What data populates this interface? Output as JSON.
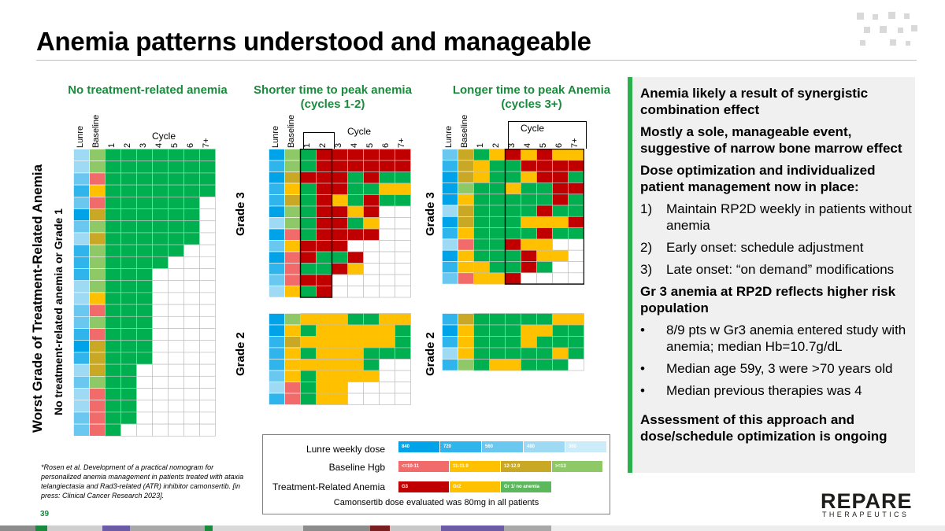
{
  "title": "Anemia patterns understood and manageable",
  "page_number": "39",
  "panels": {
    "no_anemia": {
      "title": "No treatment-related anemia"
    },
    "shorter": {
      "title_line1": "Shorter time to peak anemia",
      "title_line2": "(cycles 1-2)"
    },
    "longer": {
      "title_line1": "Longer time to peak Anemia",
      "title_line2": "(cycles 3+)"
    }
  },
  "column_headers": {
    "lunre": "Lunre",
    "baseline": "Baseline",
    "cycle": "Cycle",
    "cycles": [
      "1",
      "2",
      "3",
      "4",
      "5",
      "6",
      "7+"
    ]
  },
  "grade_labels": {
    "grade3": "Grade 3",
    "grade2": "Grade 2"
  },
  "axis": {
    "outer": "Worst Grade of Treatment-Related Anemia",
    "inner": "No treatment-related anemia or Grade 1"
  },
  "colors": {
    "green": "#00b050",
    "yellow": "#ffc000",
    "red": "#c00000",
    "empty": "#ffffff",
    "lunre": [
      "#00a2e8",
      "#30b4ec",
      "#6ac8f0",
      "#9fdaf5",
      "#cdecfa"
    ],
    "hgb": [
      "#f26b6b",
      "#ffc000",
      "#c9a825",
      "#8fc866"
    ]
  },
  "grids": {
    "no_anemia": {
      "lunre": [
        3,
        3,
        2,
        1,
        2,
        0,
        2,
        3,
        1,
        1,
        1,
        3,
        3,
        2,
        2,
        1,
        0,
        1,
        3,
        2,
        3,
        3,
        2,
        2
      ],
      "baseline": [
        3,
        3,
        0,
        1,
        0,
        2,
        3,
        2,
        3,
        3,
        3,
        3,
        1,
        0,
        3,
        0,
        2,
        2,
        2,
        3,
        0,
        0,
        0,
        0
      ],
      "cycles": [
        7,
        7,
        7,
        7,
        6,
        6,
        6,
        6,
        5,
        4,
        3,
        3,
        3,
        3,
        3,
        3,
        3,
        3,
        2,
        2,
        2,
        2,
        2,
        1
      ]
    },
    "shorter_g3": {
      "lunre": [
        0,
        1,
        0,
        1,
        1,
        0,
        3,
        0,
        2,
        0,
        1,
        2,
        3
      ],
      "baseline": [
        3,
        3,
        2,
        1,
        2,
        3,
        3,
        0,
        1,
        0,
        0,
        0,
        1
      ],
      "rows": [
        "gRRRRRR",
        "gRRRRRR",
        "RRRgRgg",
        "gRRggyy",
        "gRygRgg",
        "gRRyR__",
        "gRRgy__",
        "gRRRR__",
        "RRR____",
        "RggR___",
        "ggRy___",
        "RR_____",
        "gR_____"
      ]
    },
    "shorter_g2": {
      "lunre": [
        0,
        0,
        1,
        1,
        1,
        2,
        3,
        1
      ],
      "baseline": [
        3,
        1,
        2,
        1,
        1,
        1,
        0,
        0
      ],
      "rows": [
        "yyyggyy",
        "gyyyyyg",
        "yyyyyyg",
        "gyyyggg",
        "yyyyg__",
        "gyyyy__",
        "gyy____",
        "gyy____"
      ]
    },
    "longer_g3": {
      "lunre": [
        2,
        1,
        0,
        0,
        0,
        3,
        0,
        1,
        3,
        0,
        1,
        2
      ],
      "baseline": [
        2,
        2,
        2,
        3,
        1,
        2,
        2,
        1,
        0,
        1,
        1,
        0
      ],
      "rows": [
        "gyRyRyy",
        "yggRRRR",
        "yggyRRg",
        "ggyggRR",
        "gggggRg",
        "ggggRgg",
        "gggyyyR",
        "ggggRgg",
        "ggRyy__",
        "gggRyy_",
        "yggRg__",
        "yyR____"
      ]
    },
    "longer_g2": {
      "lunre": [
        1,
        0,
        1,
        3,
        1
      ],
      "baseline": [
        2,
        1,
        1,
        1,
        3
      ],
      "rows": [
        "gggggyy",
        "gggyygg",
        "gggyggg",
        "gggggyg",
        "gyyggg_"
      ]
    }
  },
  "right_panel": {
    "heading1": "Anemia likely a result of synergistic combination effect",
    "heading2": "Mostly a sole, manageable event, suggestive of narrow bone marrow effect",
    "heading3": "Dose optimization and individualized patient management now in place:",
    "numbered": [
      {
        "marker": "1)",
        "text": "Maintain RP2D weekly in patients without anemia"
      },
      {
        "marker": "2)",
        "text": "Early onset: schedule adjustment"
      },
      {
        "marker": "3)",
        "text": "Late onset: “on demand” modifications"
      }
    ],
    "heading4": "Gr 3 anemia at RP2D reflects higher risk population",
    "bullets": [
      {
        "marker": "•",
        "text": "8/9 pts w Gr3 anemia entered study with anemia; median Hb=10.7g/dL"
      },
      {
        "marker": "•",
        "text": "Median age 59y, 3 were >70 years old"
      },
      {
        "marker": "•",
        "text": "Median previous therapies was 4"
      }
    ],
    "heading5": "Assessment of this approach and dose/schedule optimization is ongoing"
  },
  "legend": {
    "row1": {
      "label": "Lunre weekly dose",
      "segments": [
        "840",
        "720",
        "560",
        "480",
        "360"
      ]
    },
    "row2": {
      "label": "Baseline Hgb",
      "segments": [
        "<=10-11",
        "11-11.9",
        "12-12.9",
        ">=13"
      ]
    },
    "row3": {
      "label": "Treatment-Related Anemia",
      "segments": [
        "G3",
        "Gr2",
        "Gr 1/ no anemia"
      ]
    },
    "footer": "Camonsertib dose evaluated was 80mg in all patients"
  },
  "footnote": "*Rosen et al. Development of a practical nomogram for personalized anemia management in patients treated with ataxia telangiectasia and Rad3-related (ATR) inhibitor camonsertib. [in press: Clinical Cancer Research 2023].",
  "logo": {
    "main": "REPARE",
    "sub": "THERAPEUTICS"
  }
}
